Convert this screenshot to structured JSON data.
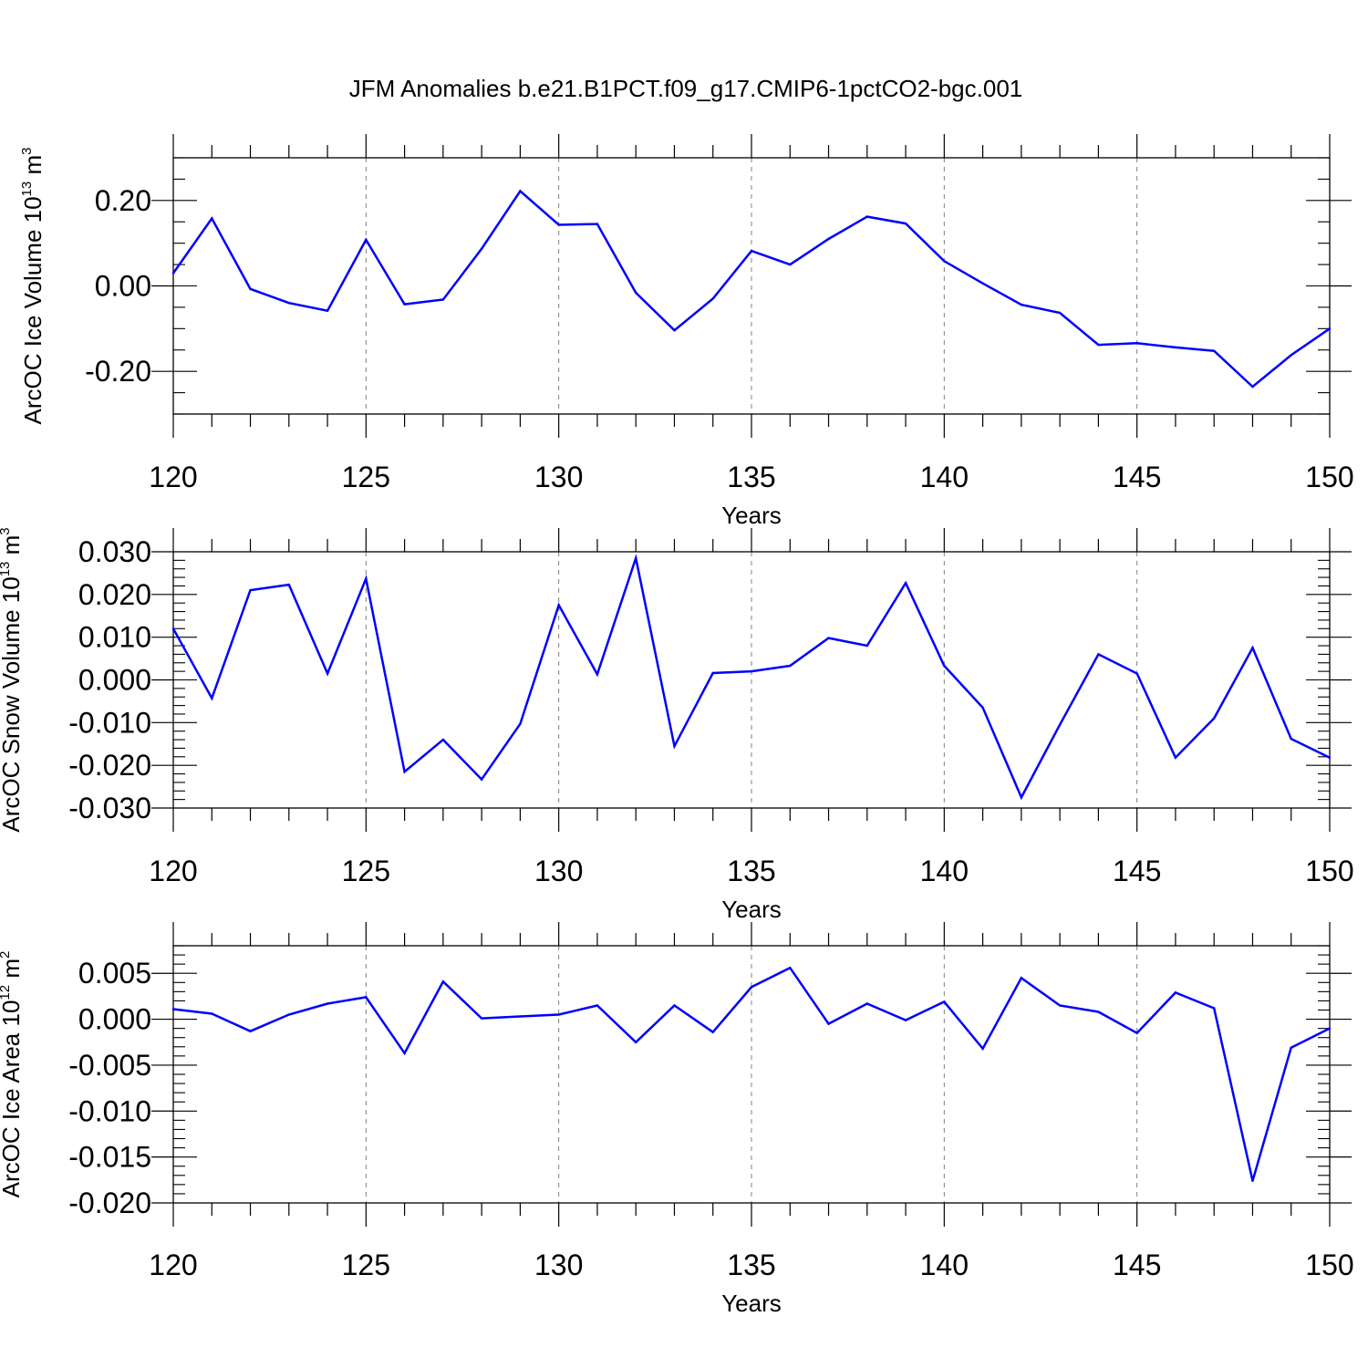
{
  "figure": {
    "title": "JFM Anomalies b.e21.B1PCT.f09_g17.CMIP6-1pctCO2-bgc.001"
  },
  "chart_data": [
    {
      "type": "line",
      "ylabel": "ArcOC Ice Volume 10",
      "ylabel_exp": "13",
      "ylabel_unit": " m",
      "ylabel_unit_exp": "3",
      "xlabel": "Years",
      "xlim": [
        120,
        150
      ],
      "ylim": [
        -0.3,
        0.3
      ],
      "x_ticks": [
        120,
        125,
        130,
        135,
        140,
        145,
        150
      ],
      "y_ticks": [
        -0.2,
        0.0,
        0.2
      ],
      "y_tick_labels": [
        "-0.20",
        "0.00",
        "0.20"
      ],
      "y_minor_step": 0.05,
      "line_color": "#0000ff",
      "grid": "vertical dashed at major x ticks",
      "x": [
        120,
        121,
        122,
        123,
        124,
        125,
        126,
        127,
        128,
        129,
        130,
        131,
        132,
        133,
        134,
        135,
        136,
        137,
        138,
        139,
        140,
        141,
        142,
        143,
        144,
        145,
        146,
        147,
        148,
        149,
        150
      ],
      "values": [
        0.03,
        0.158,
        -0.007,
        -0.04,
        -0.058,
        0.108,
        -0.043,
        -0.032,
        0.087,
        0.222,
        0.143,
        0.145,
        -0.016,
        -0.104,
        -0.03,
        0.082,
        0.05,
        0.11,
        0.162,
        0.146,
        0.058,
        0.006,
        -0.044,
        -0.063,
        -0.138,
        -0.134,
        -0.144,
        -0.152,
        -0.236,
        -0.162,
        -0.1
      ]
    },
    {
      "type": "line",
      "ylabel": "ArcOC Snow Volume 10",
      "ylabel_exp": "13",
      "ylabel_unit": " m",
      "ylabel_unit_exp": "3",
      "xlabel": "Years",
      "xlim": [
        120,
        150
      ],
      "ylim": [
        -0.03,
        0.03
      ],
      "x_ticks": [
        120,
        125,
        130,
        135,
        140,
        145,
        150
      ],
      "y_ticks": [
        -0.03,
        -0.02,
        -0.01,
        0.0,
        0.01,
        0.02,
        0.03
      ],
      "y_tick_labels": [
        "-0.030",
        "-0.020",
        "-0.010",
        "0.000",
        "0.010",
        "0.020",
        "0.030"
      ],
      "y_minor_step": 0.002,
      "line_color": "#0000ff",
      "grid": "vertical dashed at major x ticks",
      "x": [
        120,
        121,
        122,
        123,
        124,
        125,
        126,
        127,
        128,
        129,
        130,
        131,
        132,
        133,
        134,
        135,
        136,
        137,
        138,
        139,
        140,
        141,
        142,
        143,
        144,
        145,
        146,
        147,
        148,
        149,
        150
      ],
      "values": [
        0.012,
        -0.0043,
        0.021,
        0.0223,
        0.0015,
        0.0237,
        -0.0215,
        -0.014,
        -0.0233,
        -0.0103,
        0.0175,
        0.0013,
        0.0285,
        -0.0155,
        0.0016,
        0.002,
        0.0033,
        0.0098,
        0.008,
        0.0227,
        0.0033,
        -0.0065,
        -0.0275,
        -0.0105,
        0.006,
        0.0015,
        -0.0182,
        -0.009,
        0.0075,
        -0.0138,
        -0.0182
      ]
    },
    {
      "type": "line",
      "ylabel": "ArcOC Ice Area 10",
      "ylabel_exp": "12",
      "ylabel_unit": " m",
      "ylabel_unit_exp": "2",
      "xlabel": "Years",
      "xlim": [
        120,
        150
      ],
      "ylim": [
        -0.02,
        0.008
      ],
      "x_ticks": [
        120,
        125,
        130,
        135,
        140,
        145,
        150
      ],
      "y_ticks": [
        -0.02,
        -0.015,
        -0.01,
        -0.005,
        0.0,
        0.005
      ],
      "y_tick_labels": [
        "-0.020",
        "-0.015",
        "-0.010",
        "-0.005",
        "0.000",
        "0.005"
      ],
      "y_minor_step": 0.001,
      "line_color": "#0000ff",
      "grid": "vertical dashed at major x ticks",
      "x": [
        120,
        121,
        122,
        123,
        124,
        125,
        126,
        127,
        128,
        129,
        130,
        131,
        132,
        133,
        134,
        135,
        136,
        137,
        138,
        139,
        140,
        141,
        142,
        143,
        144,
        145,
        146,
        147,
        148,
        149,
        150
      ],
      "values": [
        0.0011,
        0.0006,
        -0.0013,
        0.0005,
        0.0017,
        0.0024,
        -0.0037,
        0.0041,
        0.0001,
        0.0003,
        0.0005,
        0.0015,
        -0.0025,
        0.0015,
        -0.0014,
        0.0035,
        0.0056,
        -0.0005,
        0.0017,
        -0.0001,
        0.0019,
        -0.0032,
        0.0045,
        0.0015,
        0.0008,
        -0.0015,
        0.0029,
        0.0012,
        -0.0176,
        -0.0031,
        -0.001
      ]
    }
  ]
}
